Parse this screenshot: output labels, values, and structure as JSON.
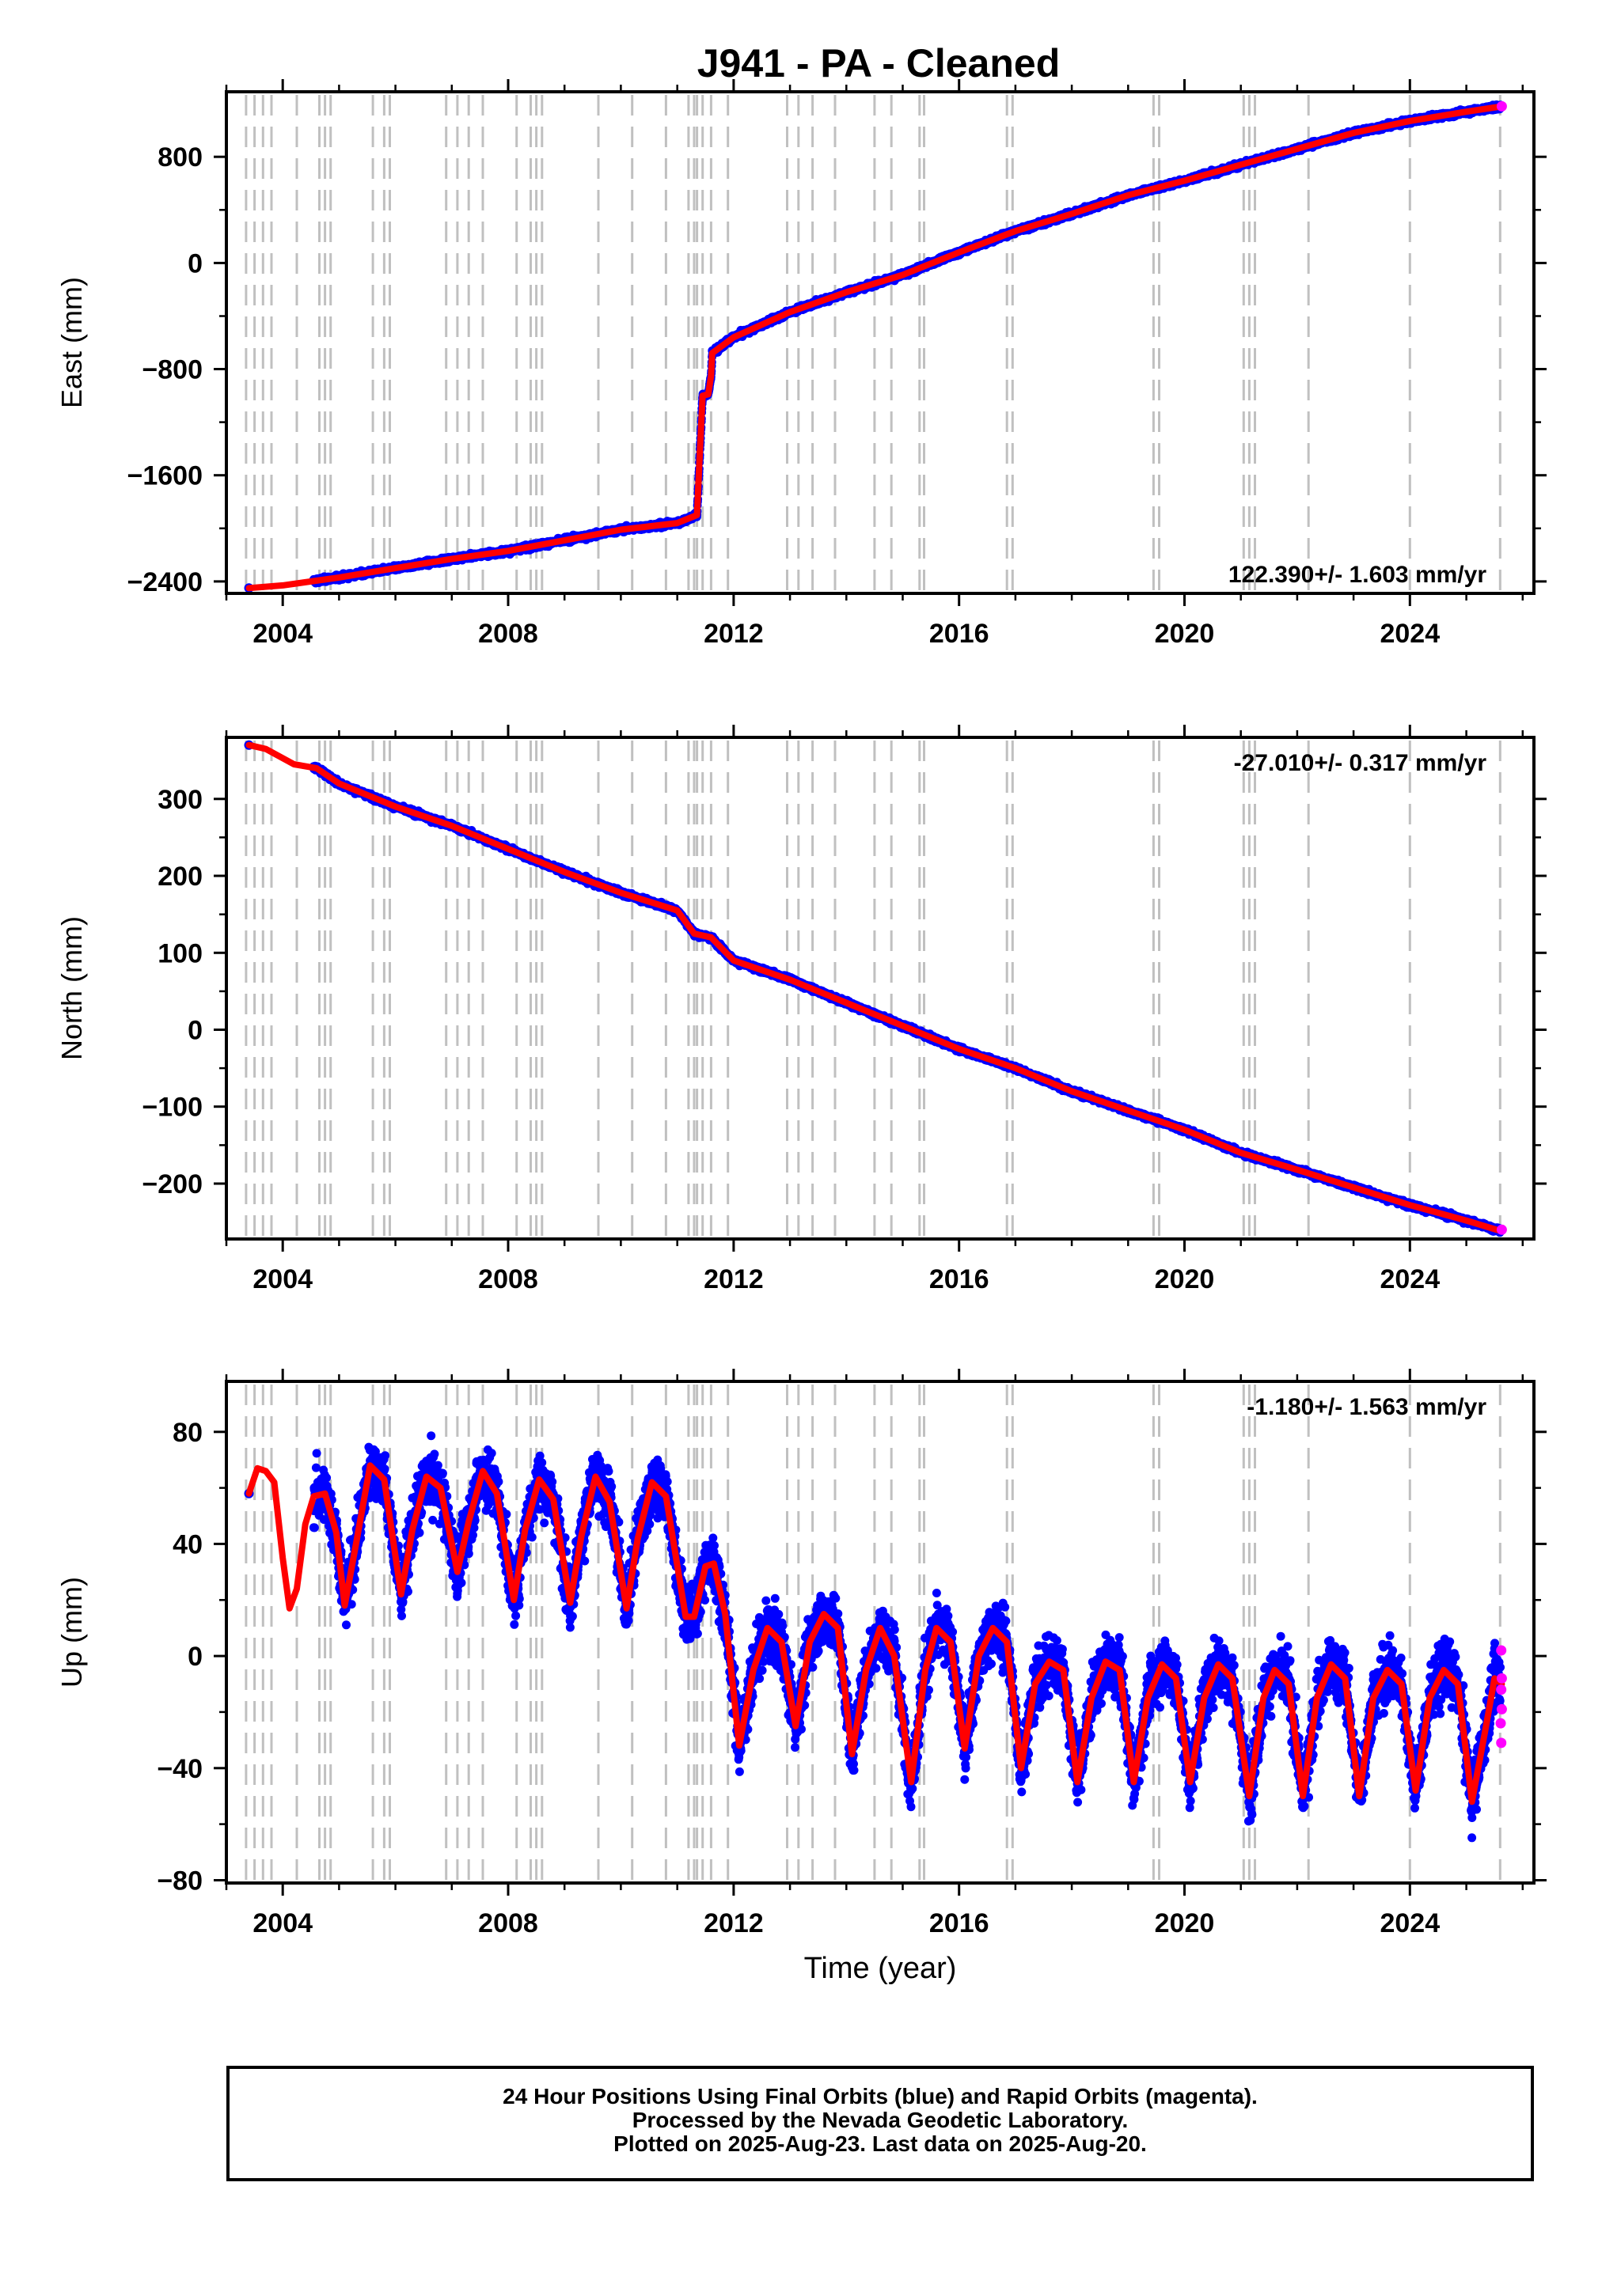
{
  "title": "J941  - PA - Cleaned",
  "colors": {
    "final": "#0000ff",
    "rapid": "#ff00ff",
    "model": "#ff0000",
    "event_line": "#c0c0c0",
    "frame": "#000000"
  },
  "footer": {
    "line1": "24 Hour Positions Using Final Orbits (blue) and Rapid Orbits (magenta).",
    "line2": "Processed by the Nevada Geodetic Laboratory.",
    "line3": "Plotted on 2025-Aug-23. Last data on 2025-Aug-20."
  },
  "chart_data": {
    "type": "scatter",
    "x_range": [
      2003.0,
      2026.2
    ],
    "x_ticks": [
      2004,
      2008,
      2012,
      2016,
      2020,
      2024
    ],
    "x_tick_labels": [
      "2004",
      "2008",
      "2012",
      "2016",
      "2020",
      "2024"
    ],
    "xlabel": "Time (year)",
    "event_years": [
      2003.35,
      2003.5,
      2003.65,
      2003.8,
      2004.25,
      2004.65,
      2004.75,
      2004.85,
      2005.6,
      2005.8,
      2005.9,
      2006.9,
      2007.1,
      2007.3,
      2007.55,
      2008.15,
      2008.4,
      2008.5,
      2008.6,
      2009.6,
      2010.2,
      2010.8,
      2011.2,
      2011.3,
      2011.35,
      2011.45,
      2011.6,
      2011.9,
      2012.95,
      2013.15,
      2013.4,
      2013.8,
      2014.5,
      2014.8,
      2015.3,
      2015.38,
      2016.85,
      2016.95,
      2019.45,
      2019.55,
      2021.05,
      2021.15,
      2021.25,
      2022.2,
      2024.0,
      2025.6
    ],
    "panels": [
      {
        "name": "east",
        "ylabel": "East (mm)",
        "ylim": [
          -2490,
          1290
        ],
        "y_ticks": [
          -2400,
          -1600,
          -800,
          0,
          800
        ],
        "y_tick_labels": [
          "−2400",
          "−1600",
          "−800",
          "0",
          "800"
        ],
        "velocity": "122.390+/- 1.603 mm/yr",
        "velocity_position": "bottom-right",
        "start_year": 2003.4,
        "end_year": 2025.63,
        "start_value": -2450,
        "end_value": 1180,
        "data_start_year": 2004.55,
        "model": [
          {
            "x": 2003.4,
            "y": -2450
          },
          {
            "x": 2004.0,
            "y": -2430
          },
          {
            "x": 2005.0,
            "y": -2370
          },
          {
            "x": 2006.0,
            "y": -2300
          },
          {
            "x": 2007.0,
            "y": -2230
          },
          {
            "x": 2008.0,
            "y": -2170
          },
          {
            "x": 2009.0,
            "y": -2090
          },
          {
            "x": 2010.0,
            "y": -2010
          },
          {
            "x": 2011.0,
            "y": -1960
          },
          {
            "x": 2011.35,
            "y": -1900
          },
          {
            "x": 2011.4,
            "y": -1440
          },
          {
            "x": 2011.45,
            "y": -1000
          },
          {
            "x": 2011.55,
            "y": -990
          },
          {
            "x": 2011.6,
            "y": -850
          },
          {
            "x": 2011.62,
            "y": -680
          },
          {
            "x": 2012.0,
            "y": -560
          },
          {
            "x": 2013.0,
            "y": -370
          },
          {
            "x": 2014.0,
            "y": -220
          },
          {
            "x": 2015.0,
            "y": -90
          },
          {
            "x": 2016.0,
            "y": 80
          },
          {
            "x": 2017.0,
            "y": 240
          },
          {
            "x": 2018.0,
            "y": 370
          },
          {
            "x": 2019.0,
            "y": 510
          },
          {
            "x": 2020.0,
            "y": 620
          },
          {
            "x": 2021.0,
            "y": 740
          },
          {
            "x": 2022.0,
            "y": 860
          },
          {
            "x": 2023.0,
            "y": 980
          },
          {
            "x": 2024.0,
            "y": 1070
          },
          {
            "x": 2025.0,
            "y": 1140
          },
          {
            "x": 2025.63,
            "y": 1180
          }
        ]
      },
      {
        "name": "north",
        "ylabel": "North (mm)",
        "ylim": [
          -272,
          380
        ],
        "y_ticks": [
          -200,
          -100,
          0,
          100,
          200,
          300
        ],
        "y_tick_labels": [
          "−200",
          "−100",
          "0",
          "100",
          "200",
          "300"
        ],
        "velocity": "-27.010+/- 0.317 mm/yr",
        "velocity_position": "top-right",
        "start_year": 2003.4,
        "end_year": 2025.63,
        "start_value": 370,
        "end_value": -260,
        "data_start_year": 2004.55,
        "model": [
          {
            "x": 2003.4,
            "y": 370
          },
          {
            "x": 2003.7,
            "y": 365
          },
          {
            "x": 2004.2,
            "y": 345
          },
          {
            "x": 2004.6,
            "y": 340
          },
          {
            "x": 2005.0,
            "y": 320
          },
          {
            "x": 2006.0,
            "y": 290
          },
          {
            "x": 2007.0,
            "y": 265
          },
          {
            "x": 2008.0,
            "y": 235
          },
          {
            "x": 2009.0,
            "y": 205
          },
          {
            "x": 2010.0,
            "y": 178
          },
          {
            "x": 2011.0,
            "y": 155
          },
          {
            "x": 2011.3,
            "y": 125
          },
          {
            "x": 2011.6,
            "y": 120
          },
          {
            "x": 2012.0,
            "y": 90
          },
          {
            "x": 2013.0,
            "y": 65
          },
          {
            "x": 2014.0,
            "y": 35
          },
          {
            "x": 2015.0,
            "y": 5
          },
          {
            "x": 2016.0,
            "y": -25
          },
          {
            "x": 2017.0,
            "y": -50
          },
          {
            "x": 2018.0,
            "y": -80
          },
          {
            "x": 2019.0,
            "y": -105
          },
          {
            "x": 2020.0,
            "y": -130
          },
          {
            "x": 2021.0,
            "y": -160
          },
          {
            "x": 2022.0,
            "y": -182
          },
          {
            "x": 2023.0,
            "y": -205
          },
          {
            "x": 2024.0,
            "y": -228
          },
          {
            "x": 2025.0,
            "y": -248
          },
          {
            "x": 2025.63,
            "y": -262
          }
        ]
      },
      {
        "name": "up",
        "ylabel": "Up (mm)",
        "ylim": [
          -81,
          98
        ],
        "y_ticks": [
          -80,
          -40,
          0,
          40,
          80
        ],
        "y_tick_labels": [
          "−80",
          "−40",
          "0",
          "40",
          "80"
        ],
        "velocity": "-1.180+/- 1.563 mm/yr",
        "velocity_position": "top-right",
        "start_year": 2003.4,
        "end_year": 2025.63,
        "data_start_year": 2004.55,
        "scatter_spread": 12,
        "model": [
          {
            "x": 2003.4,
            "y": 58
          },
          {
            "x": 2003.55,
            "y": 67
          },
          {
            "x": 2003.7,
            "y": 66
          },
          {
            "x": 2003.85,
            "y": 62
          },
          {
            "x": 2004.0,
            "y": 35
          },
          {
            "x": 2004.12,
            "y": 17
          },
          {
            "x": 2004.25,
            "y": 24
          },
          {
            "x": 2004.4,
            "y": 47
          },
          {
            "x": 2004.55,
            "y": 57
          },
          {
            "x": 2004.75,
            "y": 58
          },
          {
            "x": 2004.95,
            "y": 44
          },
          {
            "x": 2005.1,
            "y": 18
          },
          {
            "x": 2005.3,
            "y": 40
          },
          {
            "x": 2005.55,
            "y": 68
          },
          {
            "x": 2005.8,
            "y": 63
          },
          {
            "x": 2006.1,
            "y": 22
          },
          {
            "x": 2006.3,
            "y": 45
          },
          {
            "x": 2006.55,
            "y": 64
          },
          {
            "x": 2006.8,
            "y": 60
          },
          {
            "x": 2007.1,
            "y": 30
          },
          {
            "x": 2007.3,
            "y": 48
          },
          {
            "x": 2007.55,
            "y": 66
          },
          {
            "x": 2007.8,
            "y": 58
          },
          {
            "x": 2008.1,
            "y": 20
          },
          {
            "x": 2008.3,
            "y": 45
          },
          {
            "x": 2008.55,
            "y": 63
          },
          {
            "x": 2008.8,
            "y": 56
          },
          {
            "x": 2009.1,
            "y": 19
          },
          {
            "x": 2009.3,
            "y": 43
          },
          {
            "x": 2009.55,
            "y": 64
          },
          {
            "x": 2009.8,
            "y": 55
          },
          {
            "x": 2010.1,
            "y": 17
          },
          {
            "x": 2010.3,
            "y": 42
          },
          {
            "x": 2010.55,
            "y": 62
          },
          {
            "x": 2010.8,
            "y": 57
          },
          {
            "x": 2011.15,
            "y": 14
          },
          {
            "x": 2011.3,
            "y": 14
          },
          {
            "x": 2011.5,
            "y": 32
          },
          {
            "x": 2011.65,
            "y": 33
          },
          {
            "x": 2011.85,
            "y": 15
          },
          {
            "x": 2012.1,
            "y": -32
          },
          {
            "x": 2012.35,
            "y": -5
          },
          {
            "x": 2012.6,
            "y": 10
          },
          {
            "x": 2012.85,
            "y": 5
          },
          {
            "x": 2013.1,
            "y": -25
          },
          {
            "x": 2013.35,
            "y": 5
          },
          {
            "x": 2013.6,
            "y": 15
          },
          {
            "x": 2013.85,
            "y": 10
          },
          {
            "x": 2014.1,
            "y": -35
          },
          {
            "x": 2014.35,
            "y": -5
          },
          {
            "x": 2014.6,
            "y": 10
          },
          {
            "x": 2014.85,
            "y": 0
          },
          {
            "x": 2015.15,
            "y": -45
          },
          {
            "x": 2015.4,
            "y": -5
          },
          {
            "x": 2015.6,
            "y": 10
          },
          {
            "x": 2015.85,
            "y": 5
          },
          {
            "x": 2016.1,
            "y": -33
          },
          {
            "x": 2016.35,
            "y": 0
          },
          {
            "x": 2016.6,
            "y": 10
          },
          {
            "x": 2016.85,
            "y": 5
          },
          {
            "x": 2017.1,
            "y": -40
          },
          {
            "x": 2017.35,
            "y": -10
          },
          {
            "x": 2017.6,
            "y": -2
          },
          {
            "x": 2017.85,
            "y": -5
          },
          {
            "x": 2018.1,
            "y": -45
          },
          {
            "x": 2018.35,
            "y": -15
          },
          {
            "x": 2018.6,
            "y": -2
          },
          {
            "x": 2018.85,
            "y": -5
          },
          {
            "x": 2019.1,
            "y": -45
          },
          {
            "x": 2019.35,
            "y": -15
          },
          {
            "x": 2019.6,
            "y": -3
          },
          {
            "x": 2019.85,
            "y": -8
          },
          {
            "x": 2020.1,
            "y": -45
          },
          {
            "x": 2020.35,
            "y": -15
          },
          {
            "x": 2020.6,
            "y": -3
          },
          {
            "x": 2020.85,
            "y": -8
          },
          {
            "x": 2021.15,
            "y": -50
          },
          {
            "x": 2021.4,
            "y": -15
          },
          {
            "x": 2021.6,
            "y": -5
          },
          {
            "x": 2021.85,
            "y": -10
          },
          {
            "x": 2022.1,
            "y": -50
          },
          {
            "x": 2022.35,
            "y": -15
          },
          {
            "x": 2022.6,
            "y": -3
          },
          {
            "x": 2022.85,
            "y": -8
          },
          {
            "x": 2023.1,
            "y": -50
          },
          {
            "x": 2023.35,
            "y": -15
          },
          {
            "x": 2023.6,
            "y": -5
          },
          {
            "x": 2023.85,
            "y": -10
          },
          {
            "x": 2024.1,
            "y": -48
          },
          {
            "x": 2024.35,
            "y": -15
          },
          {
            "x": 2024.6,
            "y": -5
          },
          {
            "x": 2024.85,
            "y": -10
          },
          {
            "x": 2025.1,
            "y": -52
          },
          {
            "x": 2025.35,
            "y": -25
          },
          {
            "x": 2025.5,
            "y": -8
          },
          {
            "x": 2025.63,
            "y": -10
          }
        ],
        "rapid_points": [
          {
            "x": 2025.62,
            "y": 2
          },
          {
            "x": 2025.62,
            "y": -12
          },
          {
            "x": 2025.63,
            "y": -19
          },
          {
            "x": 2025.61,
            "y": -24
          },
          {
            "x": 2025.62,
            "y": -31
          },
          {
            "x": 2025.63,
            "y": -8
          }
        ]
      }
    ]
  }
}
